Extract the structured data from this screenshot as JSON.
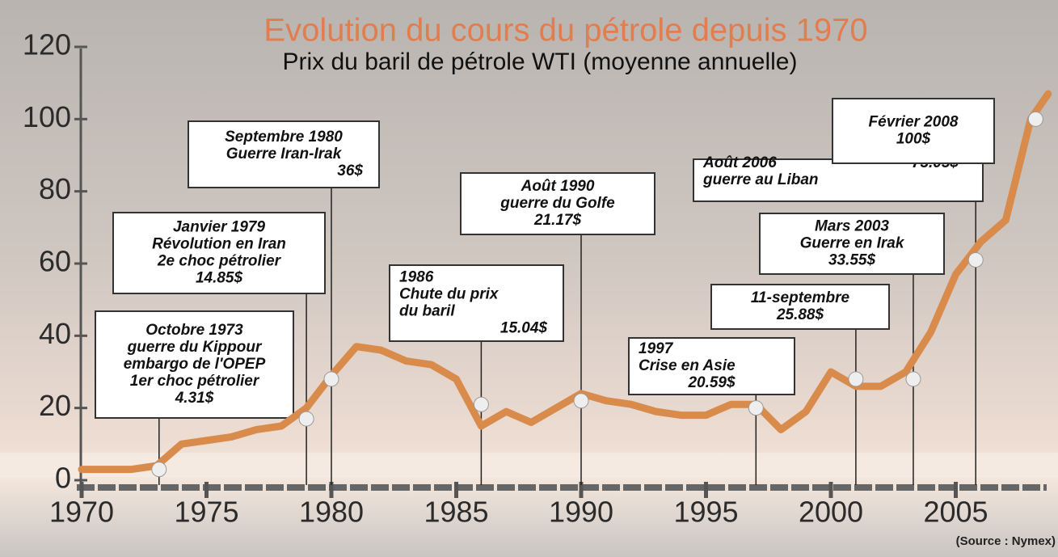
{
  "chart_data": {
    "type": "line",
    "title": "Evolution du cours du pétrole depuis 1970",
    "subtitle": "Prix du baril de pétrole WTI (moyenne annuelle)",
    "source": "(Source : Nymex)",
    "x": [
      1970,
      1971,
      1972,
      1973,
      1974,
      1975,
      1976,
      1977,
      1978,
      1979,
      1980,
      1981,
      1982,
      1983,
      1984,
      1985,
      1986,
      1987,
      1988,
      1989,
      1990,
      1991,
      1992,
      1993,
      1994,
      1995,
      1996,
      1997,
      1998,
      1999,
      2000,
      2001,
      2002,
      2003,
      2004,
      2005,
      2006,
      2007,
      2008,
      2008.7
    ],
    "series": [
      {
        "name": "WTI",
        "color": "#d98b4c",
        "values": [
          3,
          3,
          3,
          4,
          10,
          11,
          12,
          14,
          15,
          20,
          29,
          37,
          36,
          33,
          32,
          28,
          15,
          19,
          16,
          20,
          24,
          22,
          21,
          19,
          18,
          18,
          21,
          21,
          14,
          19,
          30,
          26,
          26,
          30,
          41,
          57,
          66,
          72,
          100,
          107
        ]
      }
    ],
    "markers": {
      "color": "#eeeeee",
      "x": [
        1973.1,
        1979,
        1980,
        1986,
        1990,
        1997,
        2001,
        2003.3,
        2005.8,
        2008.2
      ],
      "values": [
        3,
        17,
        28,
        21,
        22,
        20,
        28,
        28,
        61,
        100
      ]
    },
    "annotations": [
      {
        "x": 1973.1,
        "lines": [
          "Octobre 1973",
          "guerre du Kippour",
          "embargo de l'OPEP",
          "1er choc pétrolier",
          "4.31$"
        ]
      },
      {
        "x": 1979,
        "lines": [
          "Janvier 1979",
          "Révolution en Iran",
          "2e choc pétrolier",
          "14.85$"
        ]
      },
      {
        "x": 1980,
        "lines": [
          "Septembre 1980",
          "Guerre Iran-Irak",
          "36$"
        ]
      },
      {
        "x": 1986,
        "lines": [
          "1986",
          "Chute du prix",
          "du baril",
          "15.04$"
        ]
      },
      {
        "x": 1990,
        "lines": [
          "Août 1990",
          "guerre  du Golfe",
          "21.17$"
        ]
      },
      {
        "x": 1997,
        "lines": [
          "1997",
          "Crise en Asie",
          "20.59$"
        ]
      },
      {
        "x": 2001,
        "lines": [
          "11-septembre",
          "25.88$"
        ]
      },
      {
        "x": 2003.3,
        "lines": [
          "Mars 2003",
          "Guerre en Irak",
          "33.55$"
        ]
      },
      {
        "x": 2005.8,
        "lines": [
          "Août 2006",
          "guerre au Liban",
          "73.05$"
        ]
      },
      {
        "x": 2008.2,
        "lines": [
          "Février 2008",
          "100$"
        ]
      }
    ],
    "xlim": [
      1970,
      2009
    ],
    "ylim": [
      0,
      120
    ],
    "xticks": [
      1970,
      1975,
      1980,
      1985,
      1990,
      1995,
      2000,
      2005
    ],
    "yticks": [
      0,
      20,
      40,
      60,
      80,
      100,
      120
    ]
  }
}
